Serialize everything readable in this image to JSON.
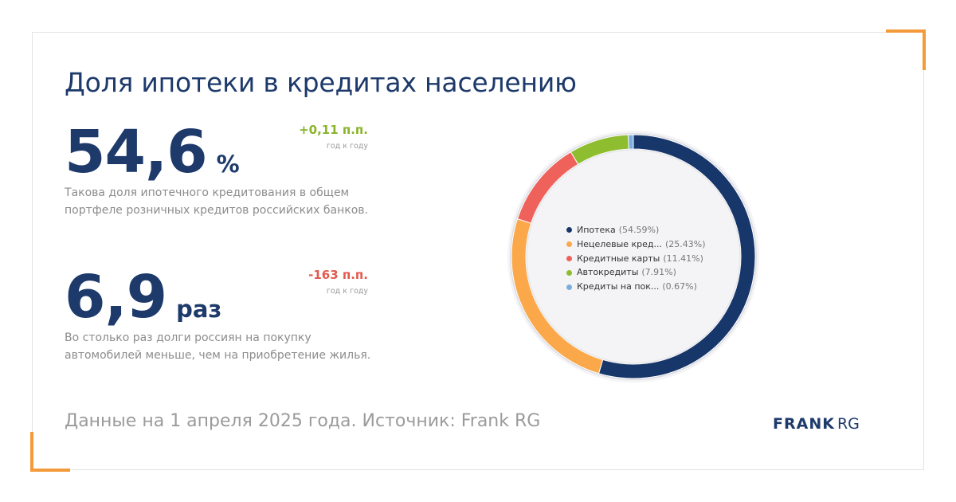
{
  "title": "Доля ипотеки в кредитах населению",
  "kpis": [
    {
      "value": "54,6",
      "unit": "%",
      "delta": "+0,11 п.п.",
      "delta_note": "год к году",
      "delta_color": "#8ab42a",
      "description": "Такова доля ипотечного кредитования в общем портфеле розничных кредитов российских банков."
    },
    {
      "value": "6,9",
      "unit": "раз",
      "delta": "-163 п.п.",
      "delta_note": "год к году",
      "delta_color": "#e35a4f",
      "description": "Во столько раз долги россиян на покупку автомобилей меньше, чем на приобретение жилья."
    }
  ],
  "footer": {
    "note": "Данные на 1 апреля 2025 года. Источник: Frank RG",
    "logo_main": "FRANK",
    "logo_sub": "RG"
  },
  "colors": {
    "brand": "#1d3a6b",
    "accent": "#f39b3a"
  },
  "chart_data": {
    "type": "pie",
    "donut": true,
    "legend_position": "center",
    "categories": [
      "Ипотека",
      "Нецелевые кред...",
      "Кредитные карты",
      "Автокредиты",
      "Кредиты на пок..."
    ],
    "values": [
      54.59,
      25.43,
      11.41,
      7.91,
      0.67
    ],
    "labels": [
      "(54.59%)",
      "(25.43%)",
      "(11.41%)",
      "(7.91%)",
      "(0.67%)"
    ],
    "colors": [
      "#17366a",
      "#fba84a",
      "#ee625b",
      "#8ebd2f",
      "#7aaede"
    ]
  }
}
